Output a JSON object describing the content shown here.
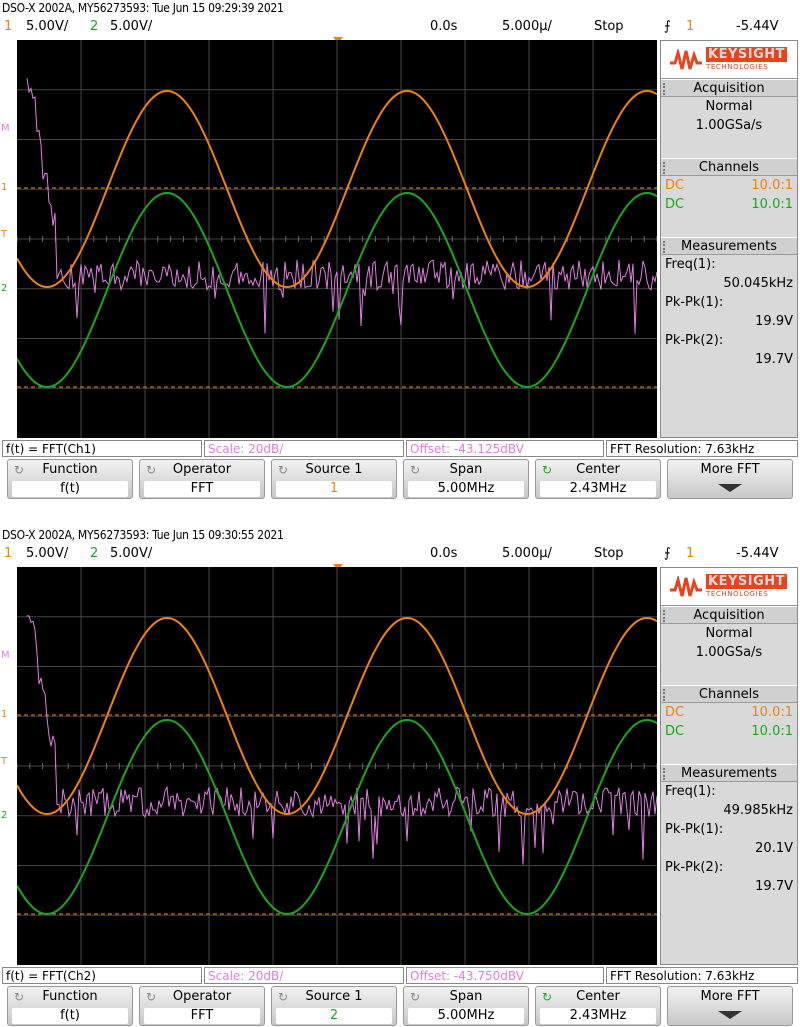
{
  "screens": [
    {
      "header": "DSO-X 2002A, MY56273593: Tue Jun 15 09:29:39 2021",
      "status": {
        "ch1_num": "1",
        "ch1_scale": "5.00V/",
        "ch2_num": "2",
        "ch2_scale": "5.00V/",
        "time_offset": "0.0s",
        "time_scale": "5.000µ/",
        "run_state": "Stop",
        "trigger_source": "1",
        "trigger_level": "-5.44V"
      },
      "left_markers": {
        "math": "M",
        "ch1": "1",
        "trig": "T",
        "ch2": "2"
      },
      "panel": {
        "brand": "KEYSIGHT",
        "brand_sub": "TECHNOLOGIES",
        "acq_title": "Acquisition",
        "acq_mode": "Normal",
        "acq_rate": "1.00GSa/s",
        "ch_title": "Channels",
        "ch1_coupling": "DC",
        "ch1_probe": "10.0:1",
        "ch2_coupling": "DC",
        "ch2_probe": "10.0:1",
        "meas_title": "Measurements",
        "m1_label": "Freq(1):",
        "m1_value": "50.045kHz",
        "m2_label": "Pk-Pk(1):",
        "m2_value": "19.9V",
        "m3_label": "Pk-Pk(2):",
        "m3_value": "19.7V"
      },
      "fn": {
        "expr": "f(t) = FFT(Ch1)",
        "scale": "Scale: 20dB/",
        "offset": "Offset: -43.125dBV",
        "res": "FFT Resolution: 7.63kHz"
      },
      "softkeys": [
        {
          "title": "Function",
          "value": "f(t)"
        },
        {
          "title": "Operator",
          "value": "FFT"
        },
        {
          "title": "Source 1",
          "value": "1"
        },
        {
          "title": "Span",
          "value": "5.00MHz"
        },
        {
          "title": "Center",
          "value": "2.43MHz"
        },
        {
          "title": "More FFT",
          "value": ""
        }
      ],
      "colors": {
        "ch1": "#f0820a",
        "ch2": "#1aa81a",
        "math": "#e27de2"
      }
    },
    {
      "header": "DSO-X 2002A, MY56273593: Tue Jun 15 09:30:55 2021",
      "status": {
        "ch1_num": "1",
        "ch1_scale": "5.00V/",
        "ch2_num": "2",
        "ch2_scale": "5.00V/",
        "time_offset": "0.0s",
        "time_scale": "5.000µ/",
        "run_state": "Stop",
        "trigger_source": "1",
        "trigger_level": "-5.44V"
      },
      "left_markers": {
        "math": "M",
        "ch1": "1",
        "trig": "T",
        "ch2": "2"
      },
      "panel": {
        "brand": "KEYSIGHT",
        "brand_sub": "TECHNOLOGIES",
        "acq_title": "Acquisition",
        "acq_mode": "Normal",
        "acq_rate": "1.00GSa/s",
        "ch_title": "Channels",
        "ch1_coupling": "DC",
        "ch1_probe": "10.0:1",
        "ch2_coupling": "DC",
        "ch2_probe": "10.0:1",
        "meas_title": "Measurements",
        "m1_label": "Freq(1):",
        "m1_value": "49.985kHz",
        "m2_label": "Pk-Pk(1):",
        "m2_value": "20.1V",
        "m3_label": "Pk-Pk(2):",
        "m3_value": "19.7V"
      },
      "fn": {
        "expr": "f(t) = FFT(Ch2)",
        "scale": "Scale: 20dB/",
        "offset": "Offset: -43.750dBV",
        "res": "FFT Resolution: 7.63kHz"
      },
      "softkeys": [
        {
          "title": "Function",
          "value": "f(t)"
        },
        {
          "title": "Operator",
          "value": "FFT"
        },
        {
          "title": "Source 1",
          "value": "2"
        },
        {
          "title": "Span",
          "value": "5.00MHz"
        },
        {
          "title": "Center",
          "value": "2.43MHz"
        },
        {
          "title": "More FFT",
          "value": ""
        }
      ],
      "colors": {
        "ch1": "#f0820a",
        "ch2": "#1aa81a",
        "math": "#e27de2"
      }
    }
  ]
}
